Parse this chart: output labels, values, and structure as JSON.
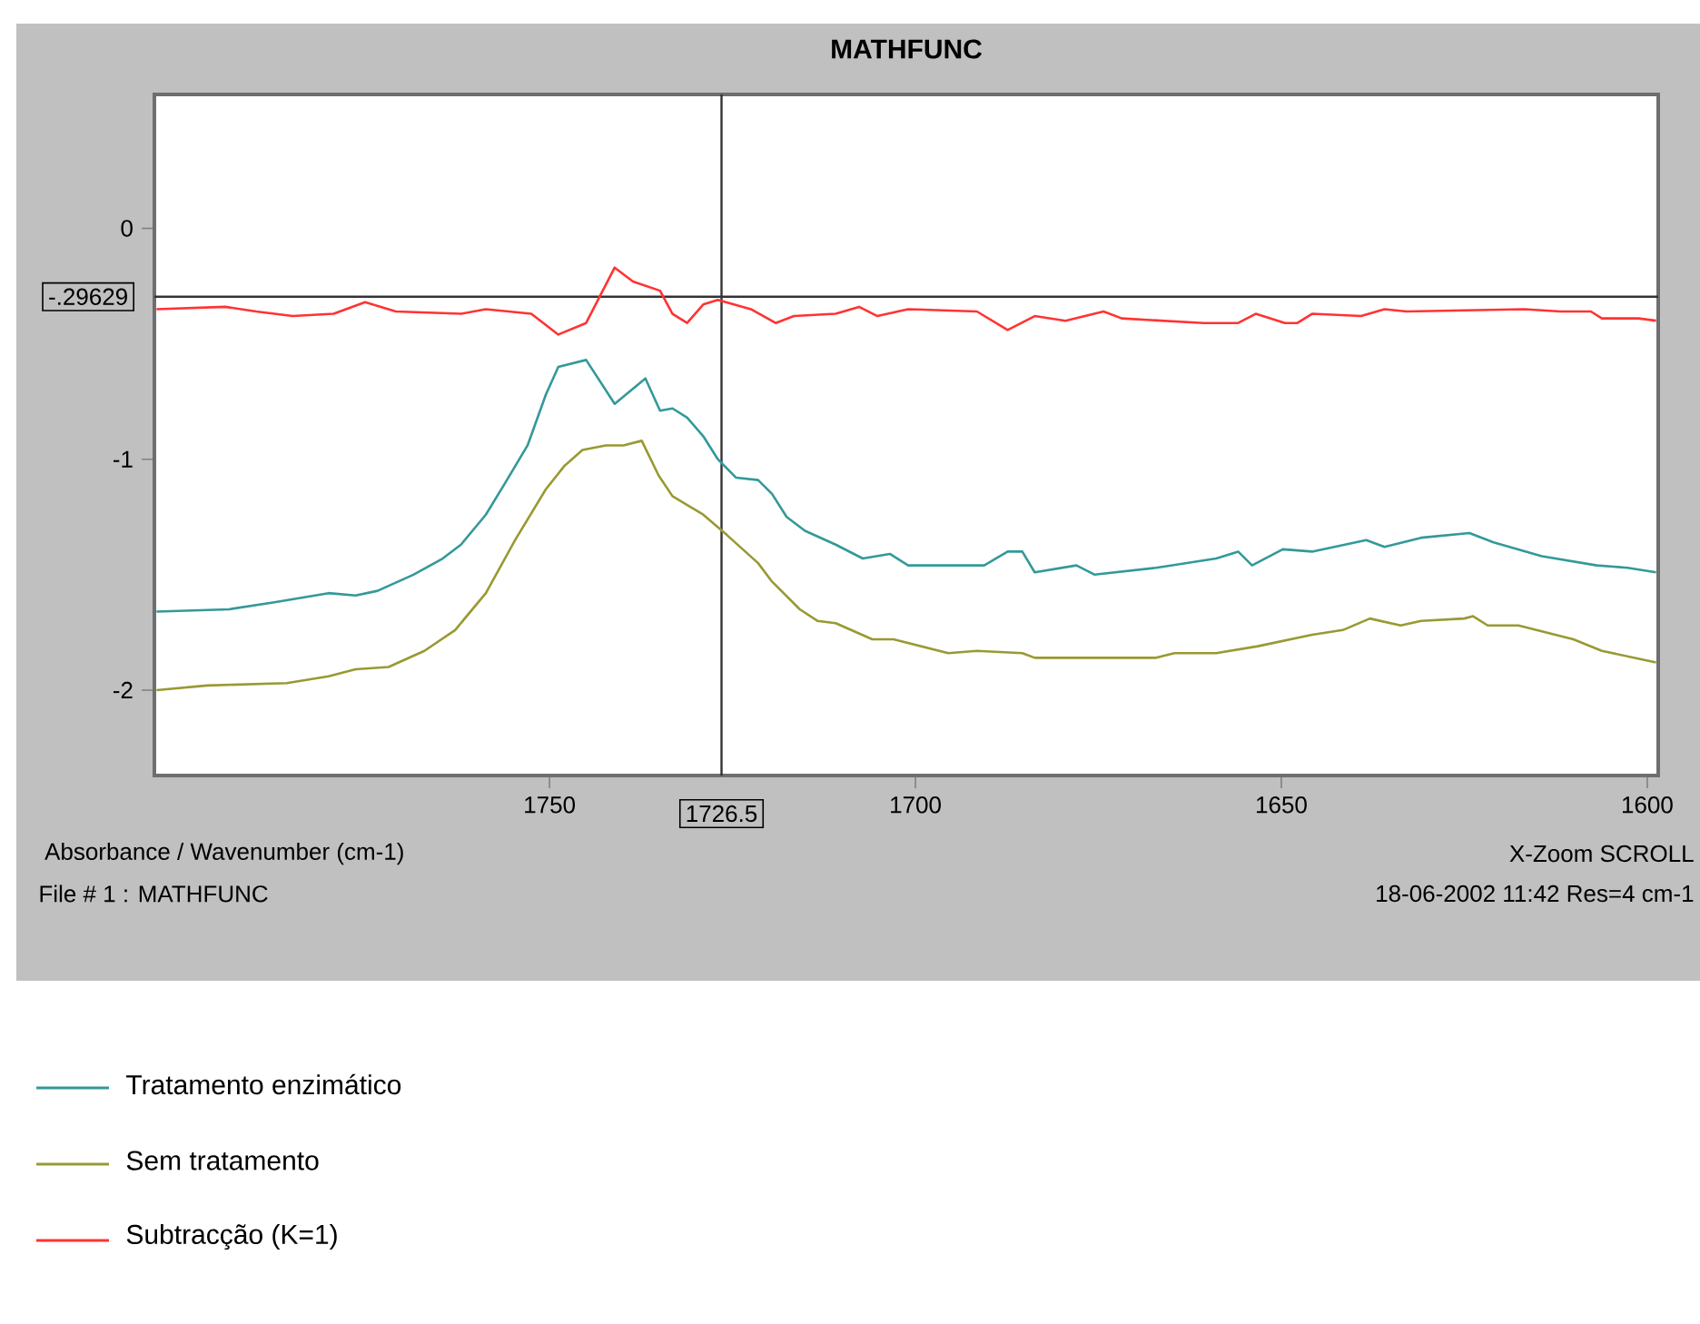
{
  "chart_data": {
    "type": "line",
    "title": "MATHFUNC",
    "xlabel": "Absorbance / Wavenumber (cm-1)",
    "xlim": [
      1804,
      1598.5
    ],
    "ylim": [
      -2.37,
      0.58
    ],
    "xticks": [
      1750,
      1700,
      1650,
      1600
    ],
    "yticks": [
      0,
      -1,
      -2
    ],
    "legend": "bottom left",
    "series": [
      {
        "name": "Tratamento enzimático",
        "color": "#339999",
        "x": [
          1803.7,
          1793.8,
          1787.6,
          1780.2,
          1776.5,
          1773.5,
          1768.6,
          1764.6,
          1762.1,
          1758.7,
          1756.2,
          1753.0,
          1750.5,
          1748.8,
          1745.0,
          1741.1,
          1736.9,
          1734.9,
          1733.2,
          1731.2,
          1729.0,
          1727.0,
          1724.5,
          1721.5,
          1719.6,
          1717.6,
          1715.1,
          1710.9,
          1707.2,
          1703.5,
          1701.0,
          1690.6,
          1687.4,
          1685.4,
          1683.7,
          1678.0,
          1675.5,
          1667.1,
          1658.9,
          1655.9,
          1654.0,
          1649.8,
          1645.8,
          1638.4,
          1635.9,
          1630.9,
          1624.3,
          1621.0,
          1614.4,
          1606.9,
          1602.7,
          1598.8
        ],
        "values": [
          -1.66,
          -1.65,
          -1.62,
          -1.58,
          -1.59,
          -1.57,
          -1.5,
          -1.43,
          -1.37,
          -1.24,
          -1.11,
          -0.94,
          -0.72,
          -0.6,
          -0.57,
          -0.76,
          -0.65,
          -0.79,
          -0.78,
          -0.82,
          -0.9,
          -1.0,
          -1.08,
          -1.09,
          -1.15,
          -1.25,
          -1.31,
          -1.37,
          -1.43,
          -1.41,
          -1.46,
          -1.46,
          -1.4,
          -1.4,
          -1.49,
          -1.46,
          -1.5,
          -1.47,
          -1.43,
          -1.4,
          -1.46,
          -1.39,
          -1.4,
          -1.35,
          -1.38,
          -1.34,
          -1.32,
          -1.36,
          -1.42,
          -1.46,
          -1.47,
          -1.49
        ]
      },
      {
        "name": "Sem tratamento",
        "color": "#999933",
        "x": [
          1803.7,
          1796.8,
          1785.9,
          1780.2,
          1776.5,
          1772.0,
          1767.1,
          1762.9,
          1758.7,
          1754.7,
          1750.5,
          1748.0,
          1745.5,
          1742.3,
          1739.9,
          1737.4,
          1735.1,
          1733.2,
          1729.0,
          1725.7,
          1721.5,
          1719.6,
          1715.8,
          1713.4,
          1710.9,
          1705.9,
          1703.0,
          1695.5,
          1691.6,
          1685.4,
          1683.7,
          1667.1,
          1664.6,
          1658.9,
          1653.2,
          1645.8,
          1641.6,
          1637.9,
          1633.7,
          1630.9,
          1625.0,
          1623.8,
          1621.8,
          1617.6,
          1610.1,
          1606.2,
          1598.8
        ],
        "values": [
          -2.0,
          -1.98,
          -1.97,
          -1.94,
          -1.91,
          -1.9,
          -1.83,
          -1.74,
          -1.58,
          -1.35,
          -1.13,
          -1.03,
          -0.96,
          -0.94,
          -0.94,
          -0.92,
          -1.07,
          -1.16,
          -1.24,
          -1.33,
          -1.45,
          -1.53,
          -1.65,
          -1.7,
          -1.71,
          -1.78,
          -1.78,
          -1.84,
          -1.83,
          -1.84,
          -1.86,
          -1.86,
          -1.84,
          -1.84,
          -1.81,
          -1.76,
          -1.74,
          -1.69,
          -1.72,
          -1.7,
          -1.69,
          -1.68,
          -1.72,
          -1.72,
          -1.78,
          -1.83,
          -1.88
        ]
      },
      {
        "name": "Subtracção (K=1)",
        "color": "#ff3333",
        "x": [
          1803.7,
          1794.3,
          1790.1,
          1785.1,
          1779.5,
          1775.2,
          1771.0,
          1762.1,
          1758.7,
          1752.5,
          1748.8,
          1745.0,
          1741.1,
          1738.6,
          1734.9,
          1733.2,
          1731.2,
          1729.0,
          1727.0,
          1722.5,
          1719.1,
          1716.6,
          1710.9,
          1707.7,
          1705.2,
          1701.0,
          1691.6,
          1687.4,
          1683.7,
          1679.5,
          1674.3,
          1671.8,
          1660.6,
          1655.9,
          1653.5,
          1649.5,
          1647.8,
          1645.8,
          1639.1,
          1635.9,
          1632.9,
          1616.8,
          1611.9,
          1607.7,
          1606.2,
          1601.2,
          1598.8
        ],
        "values": [
          -0.35,
          -0.34,
          -0.36,
          -0.38,
          -0.37,
          -0.32,
          -0.36,
          -0.37,
          -0.35,
          -0.37,
          -0.46,
          -0.41,
          -0.17,
          -0.23,
          -0.27,
          -0.37,
          -0.41,
          -0.33,
          -0.31,
          -0.35,
          -0.41,
          -0.38,
          -0.37,
          -0.34,
          -0.38,
          -0.35,
          -0.36,
          -0.44,
          -0.38,
          -0.4,
          -0.36,
          -0.39,
          -0.41,
          -0.41,
          -0.37,
          -0.41,
          -0.41,
          -0.37,
          -0.38,
          -0.35,
          -0.36,
          -0.35,
          -0.36,
          -0.36,
          -0.39,
          -0.39,
          -0.4
        ]
      }
    ],
    "ref_lines": [
      {
        "axis": "x",
        "value": 1726.5,
        "label": "1726.5",
        "color": "#333333"
      },
      {
        "axis": "y",
        "value": -0.29629,
        "label": "-.29629",
        "color": "#333333"
      }
    ],
    "annotations": [
      "X-Zoom SCROLL",
      "File # 1 : MATHFUNC",
      "18-06-2002  11:42  Res=4 cm-1"
    ]
  }
}
